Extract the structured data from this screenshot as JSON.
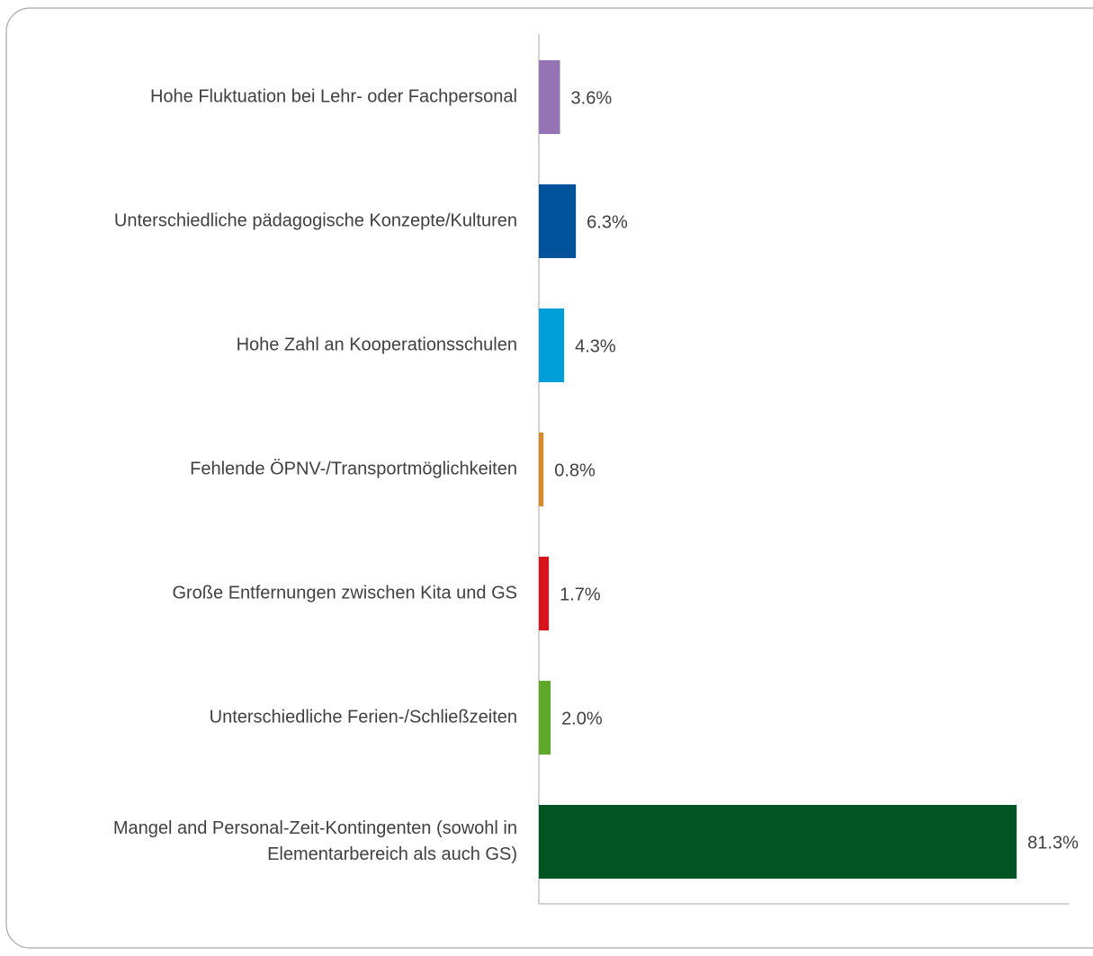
{
  "chart_data": {
    "type": "barh",
    "categories": [
      "Hohe Fluktuation bei Lehr- oder Fachpersonal",
      "Unterschiedliche pädagogische Konzepte/Kulturen",
      "Hohe Zahl an Kooperationsschulen",
      "Fehlende ÖPNV-/Transportmöglichkeiten",
      "Große Entfernungen zwischen Kita und GS",
      "Unterschiedliche Ferien-/Schließzeiten",
      "Mangel and Personal-Zeit-Kontingenten (sowohl in Elementarbereich als auch GS)"
    ],
    "values": [
      3.6,
      6.3,
      4.3,
      0.8,
      1.7,
      2.0,
      81.3
    ],
    "value_labels": [
      "3.6%",
      "6.3%",
      "4.3%",
      "0.8%",
      "1.7%",
      "2.0%",
      "81.3%"
    ],
    "colors": [
      "#9673b5",
      "#00539b",
      "#009fda",
      "#d48a2b",
      "#d7141d",
      "#5ea92a",
      "#005522"
    ],
    "xlim": [
      0,
      90
    ]
  }
}
